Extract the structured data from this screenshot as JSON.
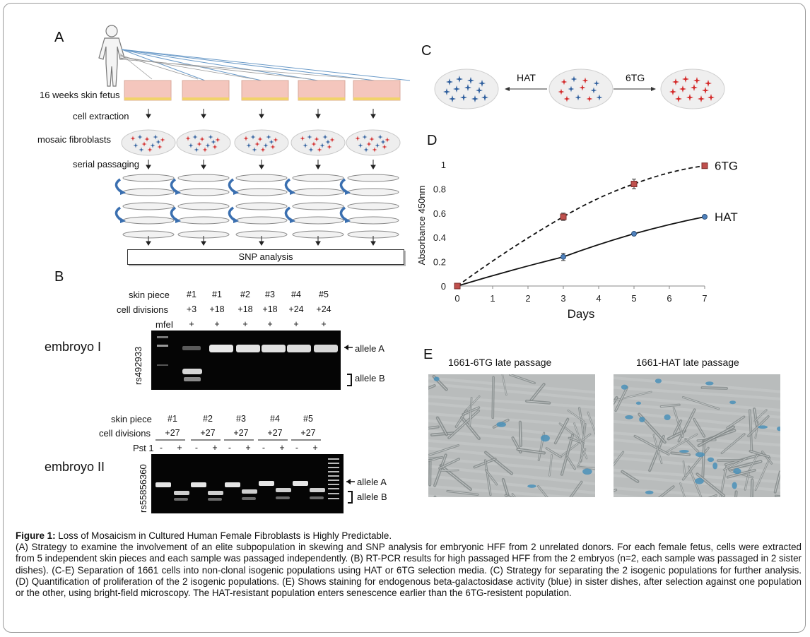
{
  "panel_a": {
    "label": "A",
    "rows": [
      "16 weeks skin fetus",
      "cell extraction",
      "mosaic fibroblasts",
      "serial passaging"
    ],
    "snp_box": "SNP analysis"
  },
  "panel_b": {
    "label": "B",
    "gel1": {
      "row_labels": [
        "skin piece",
        "cell divisions",
        "mfeI"
      ],
      "columns": [
        {
          "piece": "#1",
          "div": "+3",
          "enz": "+"
        },
        {
          "piece": "#1",
          "div": "+18",
          "enz": "+"
        },
        {
          "piece": "#2",
          "div": "+18",
          "enz": "+"
        },
        {
          "piece": "#3",
          "div": "+18",
          "enz": "+"
        },
        {
          "piece": "#4",
          "div": "+24",
          "enz": "+"
        },
        {
          "piece": "#5",
          "div": "+24",
          "enz": "+"
        }
      ],
      "embryo": "embroyo I",
      "snp": "rs492933",
      "allele_a": "allele A",
      "allele_b": "allele B"
    },
    "gel2": {
      "row_labels": [
        "skin piece",
        "cell divisions",
        "Pst 1"
      ],
      "groups": [
        {
          "piece": "#1",
          "div": "+27"
        },
        {
          "piece": "#2",
          "div": "+27"
        },
        {
          "piece": "#3",
          "div": "+27"
        },
        {
          "piece": "#4",
          "div": "+27"
        },
        {
          "piece": "#5",
          "div": "+27"
        }
      ],
      "minus": "-",
      "plus": "+",
      "embryo": "embroyo II",
      "snp": "rs55856360",
      "allele_a": "allele A",
      "allele_b": "allele B"
    }
  },
  "panel_c": {
    "label": "C",
    "left_arrow_label": "HAT",
    "right_arrow_label": "6TG"
  },
  "panel_d": {
    "label": "D"
  },
  "chart_data": {
    "type": "line",
    "xlabel": "Days",
    "ylabel": "Absorbance 450nm",
    "xlim": [
      0,
      7
    ],
    "ylim": [
      0,
      1
    ],
    "x_ticks": [
      "0",
      "1",
      "2",
      "3",
      "4",
      "5",
      "6",
      "7"
    ],
    "y_ticks": [
      "0",
      "0.2",
      "0.4",
      "0.6",
      "0.8",
      "1"
    ],
    "grid": false,
    "series": [
      {
        "name": "6TG",
        "x": [
          0,
          3,
          5,
          7
        ],
        "values": [
          0.0,
          0.57,
          0.84,
          0.99
        ],
        "error": [
          0.0,
          0.03,
          0.04,
          0.01
        ],
        "style": "dashed",
        "marker": "square",
        "marker_color": "#c0504d"
      },
      {
        "name": "HAT",
        "x": [
          0,
          3,
          5,
          7
        ],
        "values": [
          0.0,
          0.24,
          0.43,
          0.57
        ],
        "error": [
          0.0,
          0.03,
          0.01,
          0.01
        ],
        "style": "solid",
        "marker": "circle",
        "marker_color": "#4f81bd"
      }
    ]
  },
  "panel_e": {
    "label": "E",
    "left_title": "1661-6TG late passage",
    "right_title": "1661-HAT late passage"
  },
  "caption": {
    "title": "Figure 1:",
    "title_rest": " Loss of Mosaicism in Cultured Human Female Fibroblasts is Highly Predictable.",
    "body": "(A) Strategy to examine the involvement of an elite subpopulation in skewing and SNP analysis for embryonic HFF from 2 unrelated donors. For each female fetus, cells were extracted from 5 independent skin pieces and each sample was passaged independently. (B) RT-PCR results for high passaged HFF from the 2 embryos (n=2, each sample was passaged in 2 sister dishes). (C-E) Separation of 1661 cells into non-clonal isogenic populations using HAT or 6TG selection media. (C) Strategy for separating the 2 isogenic populations for further analysis. (D) Quantification of proliferation of the 2 isogenic populations. (E) Shows staining for endogenous beta-galactosidase activity (blue) in sister dishes, after selection against one population or the other, using bright-field microscopy. The HAT-resistant population enters senescence earlier than the 6TG-resistent population."
  },
  "colors": {
    "red_cell": "#d42a2a",
    "blue_cell": "#2f5f9e",
    "skin": "#f2c2b8",
    "gel": "#0a0a0a"
  }
}
